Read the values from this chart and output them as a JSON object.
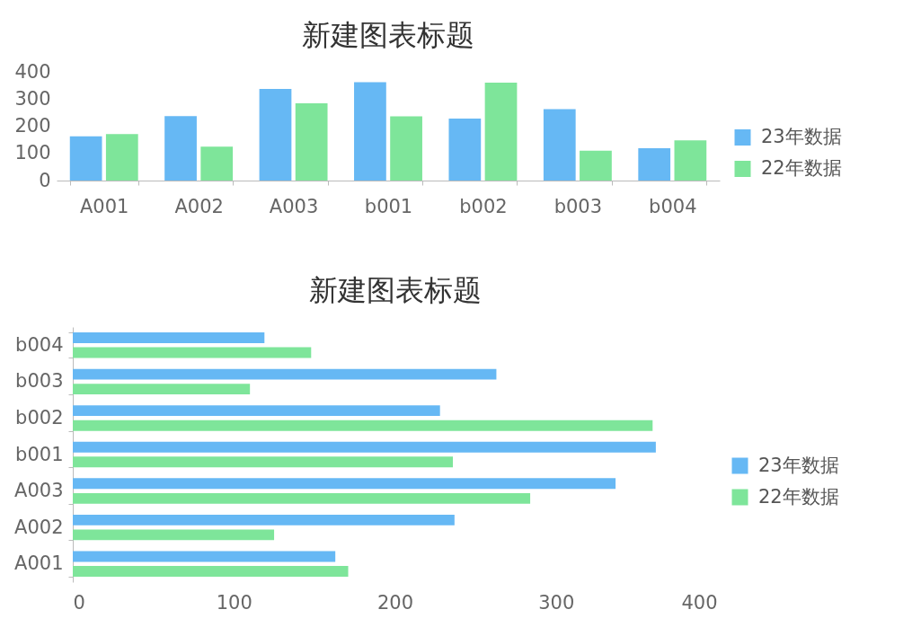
{
  "chart_data": [
    {
      "type": "bar",
      "title": "新建图表标题",
      "categories": [
        "A001",
        "A002",
        "A003",
        "b001",
        "b002",
        "b003",
        "b004"
      ],
      "series": [
        {
          "name": "23年数据",
          "color": "#66b8f4",
          "values": [
            163,
            237,
            337,
            362,
            228,
            263,
            119
          ]
        },
        {
          "name": "22年数据",
          "color": "#7ee59a",
          "values": [
            171,
            125,
            284,
            236,
            360,
            110,
            148
          ]
        }
      ],
      "ylim": [
        0,
        400
      ],
      "yticks": [
        0,
        100,
        200,
        300,
        400
      ],
      "legend": "right"
    },
    {
      "type": "bar",
      "orientation": "horizontal",
      "title": "新建图表标题",
      "categories": [
        "b004",
        "b003",
        "b002",
        "b001",
        "A003",
        "A002",
        "A001"
      ],
      "series": [
        {
          "name": "23年数据",
          "color": "#66b8f4",
          "values": [
            119,
            263,
            228,
            362,
            337,
            237,
            163
          ]
        },
        {
          "name": "22年数据",
          "color": "#7ee59a",
          "values": [
            148,
            110,
            360,
            236,
            284,
            125,
            171
          ]
        }
      ],
      "xlim": [
        0,
        400
      ],
      "xticks": [
        0,
        100,
        200,
        300,
        400
      ],
      "legend": "right"
    }
  ]
}
